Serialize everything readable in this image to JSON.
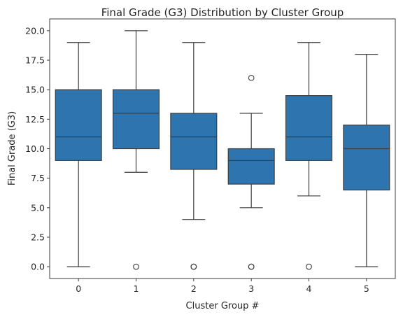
{
  "chart_data": {
    "type": "box",
    "title": "Final Grade (G3) Distribution by Cluster Group",
    "xlabel": "Cluster Group #",
    "ylabel": "Final Grade (G3)",
    "categories": [
      "0",
      "1",
      "2",
      "3",
      "4",
      "5"
    ],
    "ylim": [
      -1.0,
      21.0
    ],
    "yticks": [
      0.0,
      2.5,
      5.0,
      7.5,
      10.0,
      12.5,
      15.0,
      17.5,
      20.0
    ],
    "ytick_labels": [
      "0.0",
      "2.5",
      "5.0",
      "7.5",
      "10.0",
      "12.5",
      "15.0",
      "17.5",
      "20.0"
    ],
    "box_color": "#2e75b0",
    "line_color": "#3d3d3d",
    "boxes": [
      {
        "category": "0",
        "whisker_low": 0,
        "q1": 9.0,
        "median": 11.0,
        "q3": 15.0,
        "whisker_high": 19.0,
        "outliers": []
      },
      {
        "category": "1",
        "whisker_low": 8.0,
        "q1": 10.0,
        "median": 13.0,
        "q3": 15.0,
        "whisker_high": 20.0,
        "outliers": [
          0
        ]
      },
      {
        "category": "2",
        "whisker_low": 4.0,
        "q1": 8.25,
        "median": 11.0,
        "q3": 13.0,
        "whisker_high": 19.0,
        "outliers": [
          0,
          0
        ]
      },
      {
        "category": "3",
        "whisker_low": 5.0,
        "q1": 7.0,
        "median": 9.0,
        "q3": 10.0,
        "whisker_high": 13.0,
        "outliers": [
          16,
          0,
          0
        ]
      },
      {
        "category": "4",
        "whisker_low": 6.0,
        "q1": 9.0,
        "median": 11.0,
        "q3": 14.5,
        "whisker_high": 19.0,
        "outliers": [
          0
        ]
      },
      {
        "category": "5",
        "whisker_low": 0,
        "q1": 6.5,
        "median": 10.0,
        "q3": 12.0,
        "whisker_high": 18.0,
        "outliers": []
      }
    ]
  }
}
